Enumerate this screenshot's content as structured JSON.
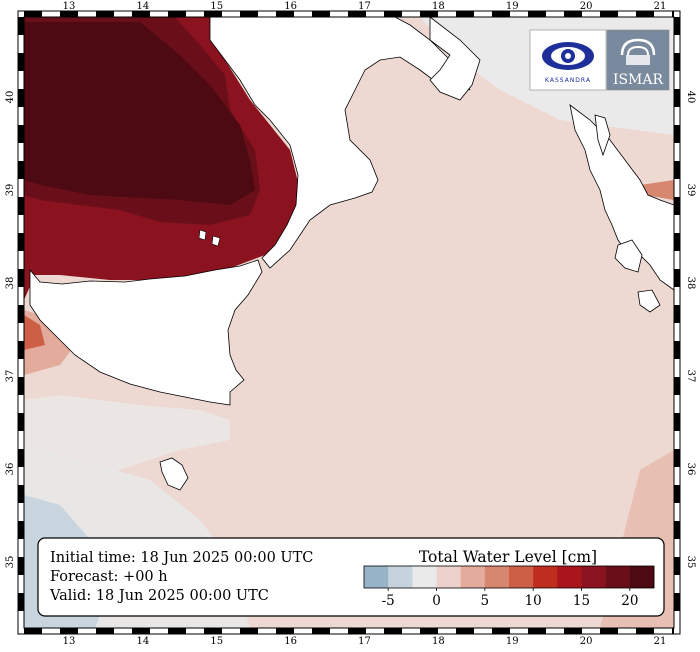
{
  "map": {
    "lon_ticks": [
      "13",
      "14",
      "15",
      "16",
      "17",
      "18",
      "19",
      "20",
      "21"
    ],
    "lat_ticks": [
      "35",
      "36",
      "37",
      "38",
      "39",
      "40"
    ],
    "land_color": "#ffffff",
    "coast_color": "#000000"
  },
  "info": {
    "initial_time": "Initial time: 18 Jun 2025 00:00 UTC",
    "forecast": "Forecast: +00 h",
    "valid": "Valid: 18 Jun 2025 00:00 UTC"
  },
  "colorbar": {
    "title": "Total Water Level [cm]",
    "colors": [
      "#98b4c8",
      "#c6d3dc",
      "#eaeaea",
      "#edd1cb",
      "#e2ab9c",
      "#d78670",
      "#cc5f45",
      "#be2e1e",
      "#a9151c",
      "#8a131f",
      "#6a0f19",
      "#4d0a12"
    ],
    "tick_labels": [
      "-5",
      "0",
      "5",
      "10",
      "15",
      "20"
    ]
  },
  "logos": {
    "left": {
      "name": "KASSANDRA",
      "icon": "eye-icon"
    },
    "right": {
      "name": "ISMAR",
      "icon": "shell-icon"
    }
  }
}
